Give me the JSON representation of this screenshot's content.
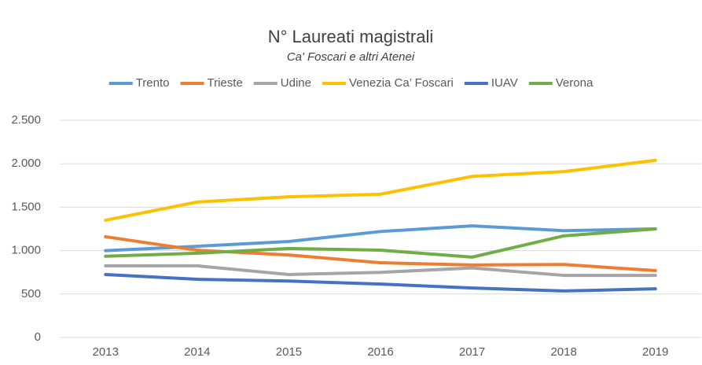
{
  "chart_data": {
    "type": "line",
    "title": "N° Laureati magistrali",
    "subtitle": "Ca' Foscari e altri Atenei",
    "categories": [
      "2013",
      "2014",
      "2015",
      "2016",
      "2017",
      "2018",
      "2019"
    ],
    "series": [
      {
        "name": "Trento",
        "color": "#5b9bd5",
        "values": [
          1000,
          1050,
          1105,
          1220,
          1285,
          1230,
          1250
        ]
      },
      {
        "name": "Trieste",
        "color": "#ed7d31",
        "values": [
          1160,
          1005,
          950,
          860,
          835,
          840,
          770
        ]
      },
      {
        "name": "Udine",
        "color": "#a5a5a5",
        "values": [
          825,
          825,
          725,
          750,
          800,
          715,
          715
        ]
      },
      {
        "name": "Venezia Ca’ Foscari",
        "color": "#ffc000",
        "values": [
          1350,
          1560,
          1620,
          1650,
          1855,
          1910,
          2040
        ]
      },
      {
        "name": "IUAV",
        "color": "#4472c4",
        "values": [
          725,
          670,
          650,
          615,
          570,
          535,
          560
        ]
      },
      {
        "name": "Verona",
        "color": "#70ad47",
        "values": [
          935,
          970,
          1025,
          1005,
          925,
          1170,
          1250
        ]
      }
    ],
    "ylim": [
      0,
      2500
    ],
    "yticks": [
      0,
      500,
      {
        "value": 1000,
        "label": "1.000"
      },
      {
        "value": 1500,
        "label": "1.500"
      },
      {
        "value": 2000,
        "label": "2.000"
      },
      {
        "value": 2500,
        "label": "2.500"
      }
    ],
    "grid": true,
    "legend": "top"
  }
}
